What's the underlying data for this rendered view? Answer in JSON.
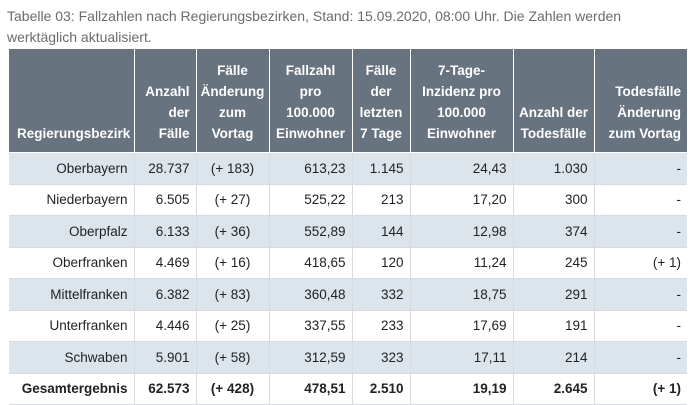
{
  "caption": "Tabelle 03: Fallzahlen nach Regierungsbezirken, Stand: 15.09.2020, 08:00 Uhr. Die Zahlen werden werktäglich aktualisiert.",
  "colors": {
    "header_bg": "#67737f",
    "stripe_bg": "#dde5ec",
    "caption_text": "#6b6b6b"
  },
  "table": {
    "headers": [
      "Regierungsbezirk",
      "Anzahl der Fälle",
      "Fälle Änderung zum Vortag",
      "Fallzahl pro 100.000 Einwohner",
      "Fälle der letzten 7 Tage",
      "7-Tage-Inzidenz pro 100.000 Einwohner",
      "Anzahl der Todesfälle",
      "Todesfälle Änderung zum Vortag"
    ],
    "rows": [
      [
        "Oberbayern",
        "28.737",
        "(+ 183)",
        "613,23",
        "1.145",
        "24,43",
        "1.030",
        "-"
      ],
      [
        "Niederbayern",
        "6.505",
        "(+ 27)",
        "525,22",
        "213",
        "17,20",
        "300",
        "-"
      ],
      [
        "Oberpfalz",
        "6.133",
        "(+ 36)",
        "552,89",
        "144",
        "12,98",
        "374",
        "-"
      ],
      [
        "Oberfranken",
        "4.469",
        "(+ 16)",
        "418,65",
        "120",
        "11,24",
        "245",
        "(+ 1)"
      ],
      [
        "Mittelfranken",
        "6.382",
        "(+ 83)",
        "360,48",
        "332",
        "18,75",
        "291",
        "-"
      ],
      [
        "Unterfranken",
        "4.446",
        "(+ 25)",
        "337,55",
        "233",
        "17,69",
        "191",
        "-"
      ],
      [
        "Schwaben",
        "5.901",
        "(+ 58)",
        "312,59",
        "323",
        "17,11",
        "214",
        "-"
      ]
    ],
    "total": [
      "Gesamtergebnis",
      "62.573",
      "(+ 428)",
      "478,51",
      "2.510",
      "19,19",
      "2.645",
      "(+ 1)"
    ]
  }
}
